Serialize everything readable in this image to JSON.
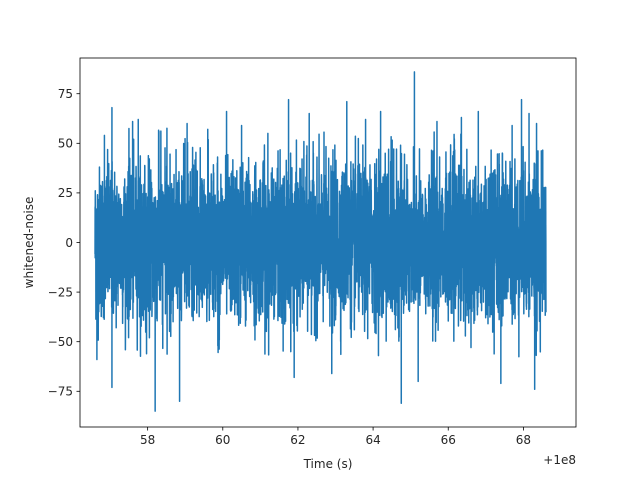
{
  "chart_data": {
    "type": "line",
    "title": "",
    "xlabel": "Time (s)",
    "ylabel": "whitened-noise",
    "x_offset_label": "+1e8",
    "xlim": [
      56.2,
      69.4
    ],
    "ylim": [
      -93,
      93
    ],
    "x_ticks": [
      58,
      60,
      62,
      64,
      66,
      68
    ],
    "y_ticks": [
      -75,
      -50,
      -25,
      0,
      25,
      50,
      75
    ],
    "x_tick_labels": [
      "58",
      "60",
      "62",
      "64",
      "66",
      "68"
    ],
    "y_tick_labels": [
      "−75",
      "−50",
      "−25",
      "0",
      "25",
      "50",
      "75"
    ],
    "grid": false,
    "series": [
      {
        "color": "#1f77b4",
        "x_range": [
          56.6,
          68.6
        ],
        "envelope": {
          "typical_min": -45,
          "typical_max": 45,
          "peaks": [
            {
              "x": 56.65,
              "y": -59
            },
            {
              "x": 56.85,
              "y": 54
            },
            {
              "x": 57.05,
              "y": 68
            },
            {
              "x": 57.05,
              "y": -73
            },
            {
              "x": 57.6,
              "y": 61
            },
            {
              "x": 57.75,
              "y": 62
            },
            {
              "x": 58.2,
              "y": -85
            },
            {
              "x": 58.3,
              "y": 56
            },
            {
              "x": 58.85,
              "y": -80
            },
            {
              "x": 59.05,
              "y": 60
            },
            {
              "x": 59.6,
              "y": 57
            },
            {
              "x": 60.1,
              "y": 66
            },
            {
              "x": 60.5,
              "y": 59
            },
            {
              "x": 61.2,
              "y": 55
            },
            {
              "x": 61.75,
              "y": 72
            },
            {
              "x": 61.9,
              "y": -68
            },
            {
              "x": 62.3,
              "y": 65
            },
            {
              "x": 62.9,
              "y": -66
            },
            {
              "x": 63.3,
              "y": 71
            },
            {
              "x": 63.8,
              "y": 62
            },
            {
              "x": 64.2,
              "y": 66
            },
            {
              "x": 64.75,
              "y": -81
            },
            {
              "x": 65.1,
              "y": 86
            },
            {
              "x": 65.2,
              "y": -70
            },
            {
              "x": 65.7,
              "y": 61
            },
            {
              "x": 66.35,
              "y": 63
            },
            {
              "x": 66.8,
              "y": 66
            },
            {
              "x": 67.4,
              "y": -71
            },
            {
              "x": 67.7,
              "y": 59
            },
            {
              "x": 67.95,
              "y": 72
            },
            {
              "x": 68.15,
              "y": 65
            },
            {
              "x": 68.3,
              "y": -74
            },
            {
              "x": 68.35,
              "y": 60
            }
          ]
        }
      }
    ]
  }
}
